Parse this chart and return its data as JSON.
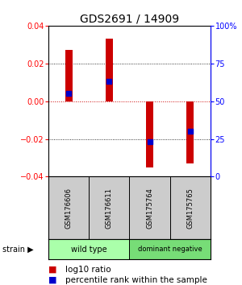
{
  "title": "GDS2691 / 14909",
  "samples": [
    "GSM176606",
    "GSM176611",
    "GSM175764",
    "GSM175765"
  ],
  "log10_ratio": [
    0.027,
    0.033,
    -0.035,
    -0.033
  ],
  "percentile_rank_pct": [
    55,
    63,
    23,
    30
  ],
  "groups": [
    {
      "name": "wild type",
      "samples": [
        0,
        1
      ],
      "color": "#aaffaa"
    },
    {
      "name": "dominant negative",
      "samples": [
        2,
        3
      ],
      "color": "#77dd77"
    }
  ],
  "ylim": [
    -0.04,
    0.04
  ],
  "yticks_left": [
    -0.04,
    -0.02,
    0,
    0.02,
    0.04
  ],
  "yticks_right": [
    0,
    25,
    50,
    75,
    100
  ],
  "bar_color": "#cc0000",
  "dot_color": "#0000cc",
  "background_color": "#ffffff",
  "label_bg_color": "#cccccc",
  "zero_line_color": "#cc0000",
  "title_fontsize": 10,
  "tick_fontsize": 7,
  "legend_fontsize": 7.5,
  "bar_width": 0.18
}
